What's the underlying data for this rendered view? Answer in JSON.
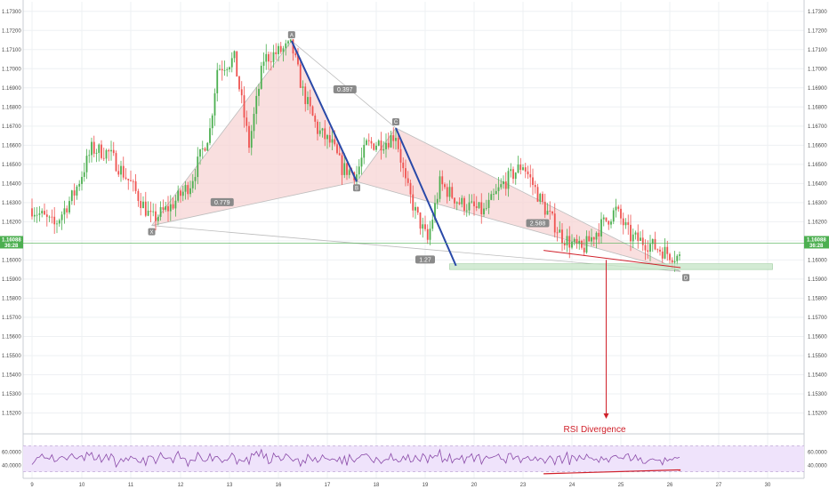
{
  "chart_data": {
    "type": "candlestick",
    "price_axis": {
      "ticks": [
        "1.15200",
        "1.15300",
        "1.15400",
        "1.15500",
        "1.15600",
        "1.15700",
        "1.15800",
        "1.15900",
        "1.16000",
        "1.16100",
        "1.16200",
        "1.16300",
        "1.16400",
        "1.16500",
        "1.16600",
        "1.16700",
        "1.16800",
        "1.16900",
        "1.17000",
        "1.17100",
        "1.17200",
        "1.17300"
      ],
      "range": [
        1.151,
        1.1735
      ]
    },
    "time_axis": {
      "ticks": [
        "9",
        "10",
        "11",
        "12",
        "13",
        "16",
        "17",
        "18",
        "19",
        "20",
        "23",
        "24",
        "25",
        "26",
        "27",
        "30"
      ]
    },
    "current_price": {
      "value": 1.16088,
      "label_left": "1.16088",
      "sub_left": "36:28",
      "label_right": "1.16088",
      "sub_right": "36:28"
    },
    "harmonic_pattern": {
      "points": [
        {
          "name": "X",
          "date_index": 2.42,
          "price": 1.1618
        },
        {
          "name": "A",
          "date_index": 5.27,
          "price": 1.17145
        },
        {
          "name": "B",
          "date_index": 6.6,
          "price": 1.1641
        },
        {
          "name": "C",
          "date_index": 7.4,
          "price": 1.1669
        },
        {
          "name": "D",
          "date_index": 13.22,
          "price": 1.1594
        }
      ],
      "ratios": [
        {
          "label": "0.779",
          "date_index": 3.85,
          "price": 1.163
        },
        {
          "label": "0.397",
          "date_index": 6.36,
          "price": 1.1689
        },
        {
          "label": "1.27",
          "date_index": 8.0,
          "price": 1.16
        },
        {
          "label": "2.588",
          "date_index": 10.3,
          "price": 1.1619
        }
      ]
    },
    "support_zone": {
      "start_index": 8.5,
      "end_index": 15.1,
      "price_low": 1.1595,
      "price_high": 1.1598
    },
    "divergence_line_price": {
      "from_index": 10.42,
      "from_price": 1.1605,
      "to_index": 13.22,
      "to_price": 1.1596
    },
    "annotation": {
      "text": "RSI Divergence"
    },
    "rsi": {
      "ticks": [
        "60.0000",
        "40.0000"
      ],
      "range": [
        20,
        80
      ],
      "levels": [
        70,
        30
      ],
      "divergence": {
        "from_index": 10.42,
        "from_value": 27,
        "to_index": 13.22,
        "to_value": 33
      }
    },
    "colors": {
      "up": "#26a69a",
      "up_fill": "#4caf50",
      "down": "#ef5350",
      "pattern_fill": "#f7d4d4",
      "pattern_line": "#bdbdbd",
      "blue_line": "#2949a8",
      "support_fill": "#c8e6c9",
      "rsi_fill": "#efe3fb",
      "rsi_line": "#8a4aa8",
      "annotation": "#d0202a",
      "current_price": "#4caf50"
    }
  }
}
